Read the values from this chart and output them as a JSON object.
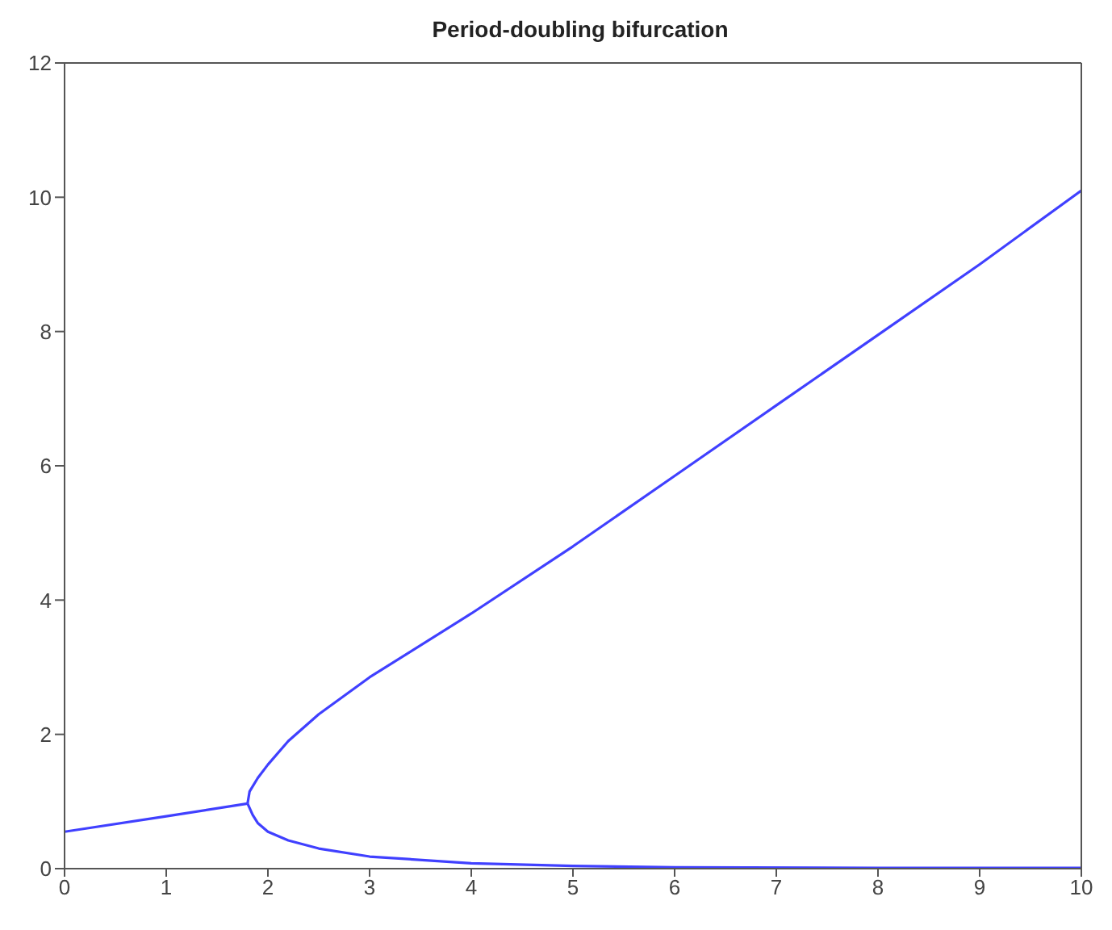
{
  "chart_data": {
    "type": "line",
    "title": "Period-doubling bifurcation",
    "xlim": [
      0,
      10
    ],
    "xticks": [
      0,
      1,
      2,
      3,
      4,
      5,
      6,
      7,
      8,
      9,
      10
    ],
    "ylim": [
      0,
      12
    ],
    "yticks": [
      0,
      2,
      4,
      6,
      8,
      10,
      12
    ],
    "marker": "none",
    "line_style": "solid",
    "series": [
      {
        "color": "#4040ff",
        "x": [
          0,
          1,
          1.8
        ],
        "values": [
          0.55,
          0.78,
          0.97
        ]
      },
      {
        "color": "#4040ff",
        "x": [
          1.8,
          1.82,
          1.9,
          2,
          2.2,
          2.5,
          3,
          4,
          5,
          6,
          7,
          8,
          9,
          10
        ],
        "values": [
          0.97,
          1.15,
          1.35,
          1.55,
          1.9,
          2.3,
          2.85,
          3.8,
          4.8,
          5.85,
          6.9,
          7.95,
          9.0,
          10.1
        ]
      },
      {
        "color": "#4040ff",
        "x": [
          1.8,
          1.85,
          1.9,
          2,
          2.2,
          2.5,
          3,
          4,
          5,
          6,
          8,
          10
        ],
        "values": [
          0.97,
          0.8,
          0.68,
          0.55,
          0.42,
          0.3,
          0.18,
          0.08,
          0.04,
          0.02,
          0.01,
          0.01
        ]
      }
    ]
  }
}
